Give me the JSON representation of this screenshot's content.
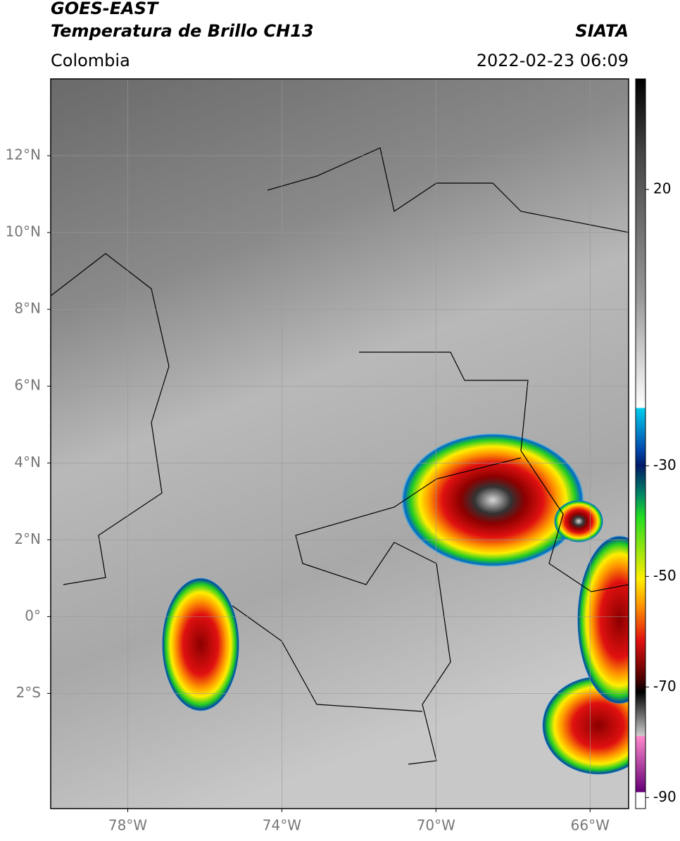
{
  "header": {
    "title": "GOES-EAST",
    "subtitle": "Temperatura de Brillo CH13",
    "region": "Colombia",
    "source": "SIATA",
    "timestamp": "2022-02-23 06:09"
  },
  "map": {
    "xlim": [
      -80,
      -65
    ],
    "ylim": [
      -5,
      14
    ],
    "xticks": [
      {
        "value": -78,
        "label": "78°W"
      },
      {
        "value": -74,
        "label": "74°W"
      },
      {
        "value": -70,
        "label": "70°W"
      },
      {
        "value": -66,
        "label": "66°W"
      }
    ],
    "yticks": [
      {
        "value": 12,
        "label": "12°N"
      },
      {
        "value": 10,
        "label": "10°N"
      },
      {
        "value": 8,
        "label": "8°N"
      },
      {
        "value": 6,
        "label": "6°N"
      },
      {
        "value": 4,
        "label": "4°N"
      },
      {
        "value": 2,
        "label": "2°N"
      },
      {
        "value": 0,
        "label": "0°"
      },
      {
        "value": -2,
        "label": "2°S"
      }
    ],
    "grid": true
  },
  "colorbar": {
    "lim": [
      -92,
      40
    ],
    "ticks": [
      20,
      -30,
      -50,
      -70,
      -90
    ]
  }
}
